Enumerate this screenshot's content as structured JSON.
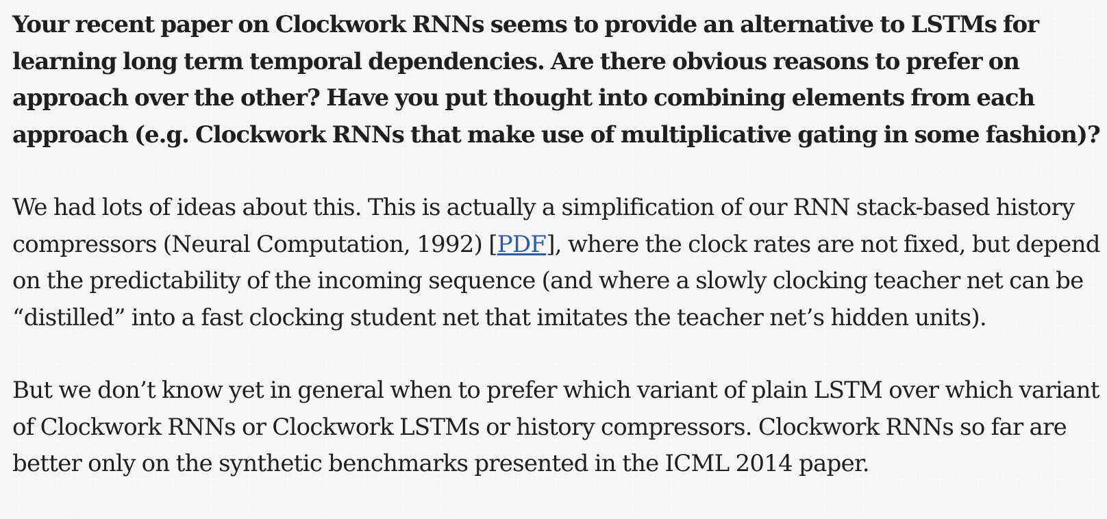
{
  "question": {
    "lines": [
      "Your recent paper on Clockwork RNNs seems to provide an alternative to LSTMs for",
      "learning long term temporal dependencies. Are there obvious reasons to prefer on",
      "approach over the other? Have you put thought into combining elements from each",
      "approach (e.g. Clockwork RNNs that make use of multiplicative gating in some fashion)?"
    ]
  },
  "answer1": {
    "line1": "We had lots of ideas about this. This is actually a simplification of our RNN stack-based history",
    "line2_before": "compressors (Neural Computation, 1992) [",
    "pdf_link": "PDF",
    "line2_after": "], where the clock rates are not fixed, but depend",
    "line3": "on the predictability of the incoming sequence (and where a slowly clocking teacher net can be",
    "line4": "“distilled” into a fast clocking student net that imitates the teacher net’s hidden units)."
  },
  "answer2": {
    "lines": [
      "But we don’t know yet in general when to prefer which variant of plain LSTM over which variant",
      "of Clockwork RNNs or Clockwork LSTMs or history compressors. Clockwork RNNs so far are",
      "better only on the synthetic benchmarks presented in the ICML 2014 paper."
    ]
  }
}
